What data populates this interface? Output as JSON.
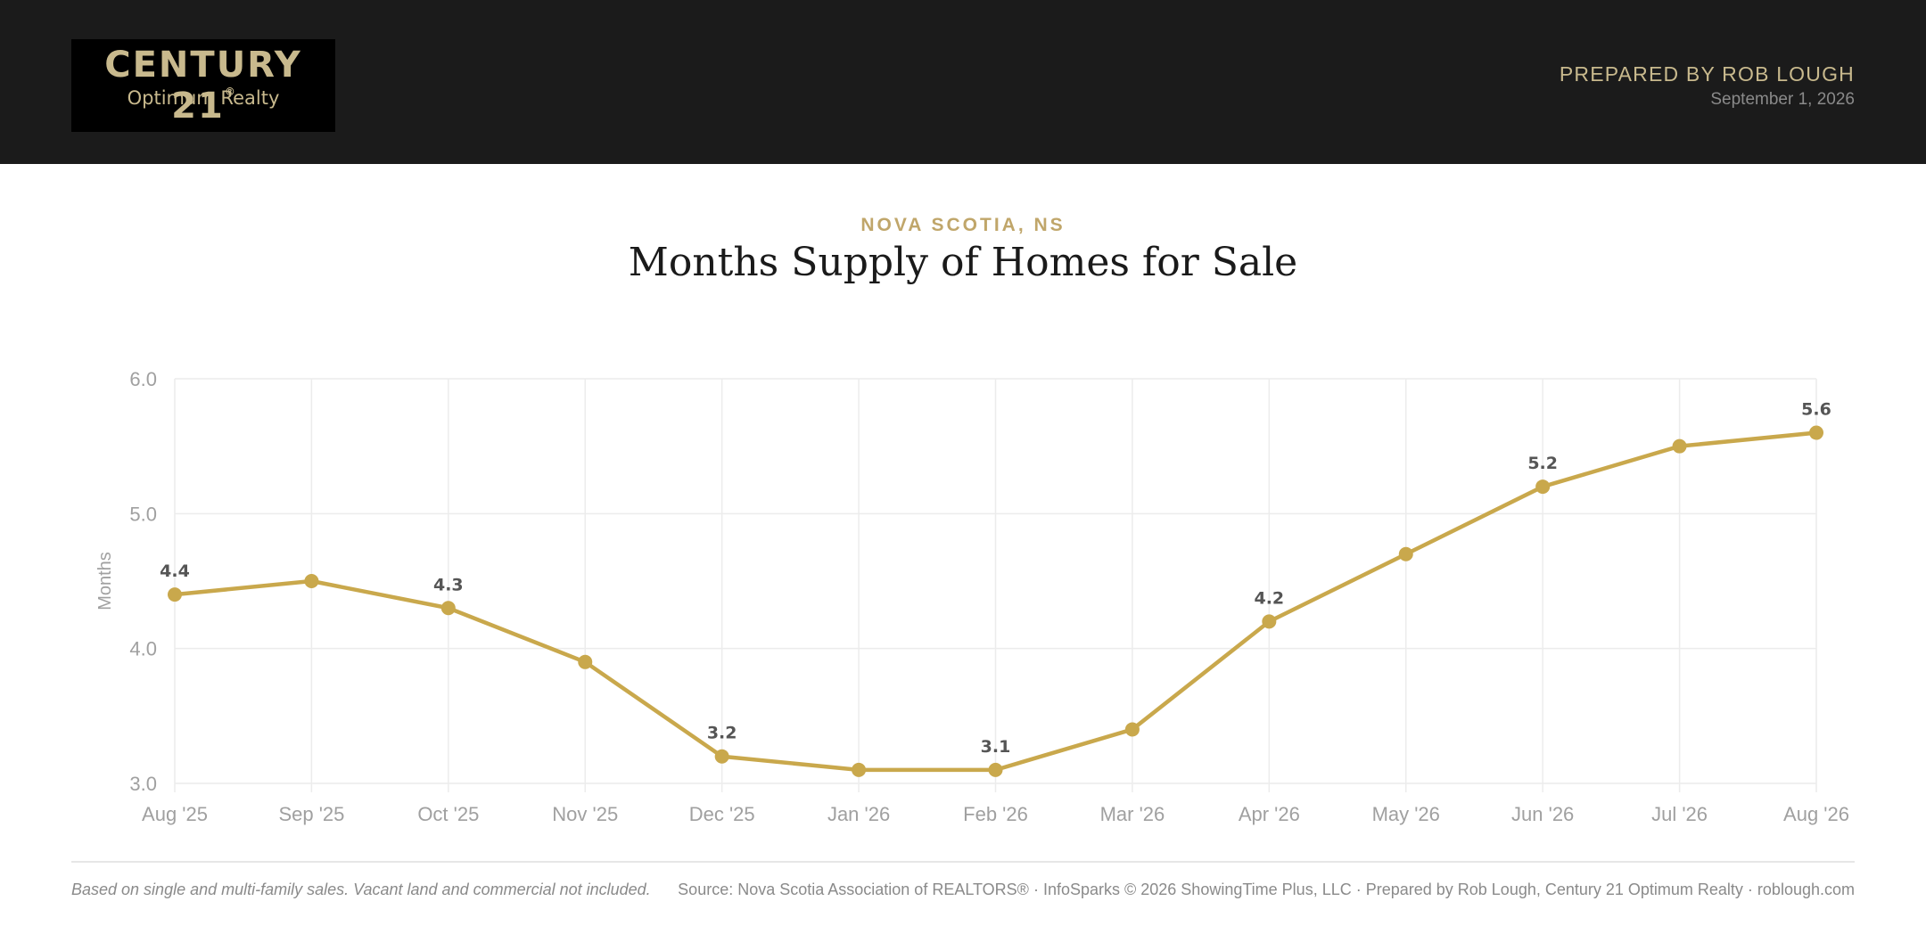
{
  "header": {
    "logo_brand": "CENTURY 21",
    "logo_reg": "®",
    "logo_sub": "Optimum Realty",
    "prepared_by": "PREPARED BY ROB LOUGH",
    "date": "September 1, 2026"
  },
  "main": {
    "region": "NOVA SCOTIA, NS",
    "title": "Months Supply of Homes for Sale"
  },
  "footer": {
    "note": "Based on single and multi-family sales. Vacant land and commercial not included.",
    "source": "Source: Nova Scotia Association of REALTORS® · InfoSparks © 2026 ShowingTime Plus, LLC · Prepared by Rob Lough, Century 21 Optimum Realty · roblough.com"
  },
  "colors": {
    "accent": "#c9a84c",
    "header_bg": "#1b1b1b",
    "gold_text": "#c8b98d"
  },
  "chart_data": {
    "type": "line",
    "title": "Months Supply of Homes for Sale",
    "xlabel": "",
    "ylabel": "Months",
    "categories": [
      "Aug '25",
      "Sep '25",
      "Oct '25",
      "Nov '25",
      "Dec '25",
      "Jan '26",
      "Feb '26",
      "Mar '26",
      "Apr '26",
      "May '26",
      "Jun '26",
      "Jul '26",
      "Aug '26"
    ],
    "values": [
      4.4,
      4.5,
      4.3,
      3.9,
      3.2,
      3.1,
      3.1,
      3.4,
      4.2,
      4.7,
      5.2,
      5.5,
      5.6
    ],
    "labeled_points": [
      0,
      2,
      4,
      6,
      8,
      10,
      12
    ],
    "ylim": [
      3.0,
      6.0
    ],
    "yticks": [
      "3.0",
      "4.0",
      "5.0",
      "6.0"
    ],
    "grid": true,
    "legend": "none"
  }
}
